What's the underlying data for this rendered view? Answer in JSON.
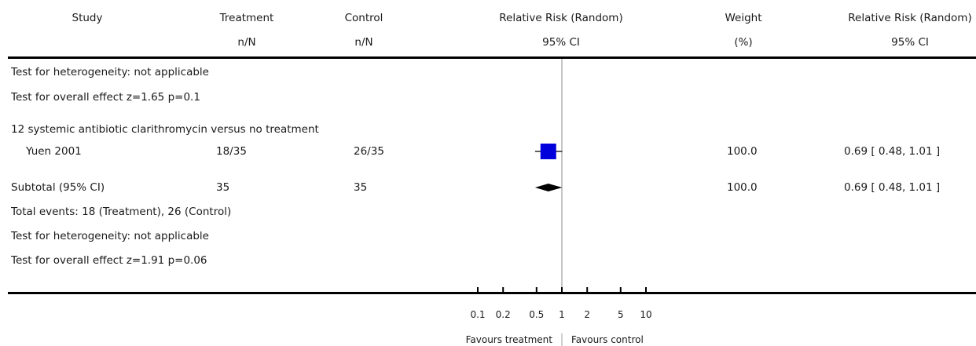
{
  "header": {
    "study": "Study",
    "treatment": "Treatment",
    "treatment_sub": "n/N",
    "control": "Control",
    "control_sub": "n/N",
    "rr": "Relative Risk (Random)",
    "rr_sub": "95% CI",
    "weight": "Weight",
    "weight_sub": "(%)",
    "rr2": "Relative Risk (Random)",
    "rr2_sub": "95% CI"
  },
  "top_notes": {
    "heterogeneity": "Test for heterogeneity: not applicable",
    "overall": "Test for overall effect z=1.65    p=0.1"
  },
  "group": {
    "title": "12 systemic antibiotic clarithromycin versus no treatment",
    "study": {
      "name": "Yuen 2001",
      "treatment": "18/35",
      "control": "26/35",
      "weight": "100.0",
      "ci": "0.69 [ 0.48, 1.01 ]"
    },
    "subtotal": {
      "label": "Subtotal (95% CI)",
      "treatment": "35",
      "control": "35",
      "weight": "100.0",
      "ci": "0.69 [ 0.48, 1.01 ]"
    },
    "events": "Total events: 18 (Treatment), 26 (Control)",
    "heterogeneity": "Test for heterogeneity: not applicable",
    "overall": "Test for overall effect z=1.91    p=0.06"
  },
  "axis": {
    "ticks": [
      "0.1",
      "0.2",
      "0.5",
      "1",
      "2",
      "5",
      "10"
    ],
    "favours_left": "Favours treatment",
    "favours_right": "Favours control"
  },
  "chart_data": {
    "type": "forest",
    "scale": "log",
    "xlim": [
      0.1,
      10
    ],
    "ticks": [
      0.1,
      0.2,
      0.5,
      1,
      2,
      5,
      10
    ],
    "studies": [
      {
        "name": "Yuen 2001",
        "rr": 0.69,
        "lo": 0.48,
        "hi": 1.01,
        "weight": 100.0
      }
    ],
    "subtotal": {
      "rr": 0.69,
      "lo": 0.48,
      "hi": 1.01
    },
    "colors": {
      "study_marker": "#0000dd",
      "summary_diamond": "#000000",
      "null_line": "#a0a0a0"
    }
  }
}
